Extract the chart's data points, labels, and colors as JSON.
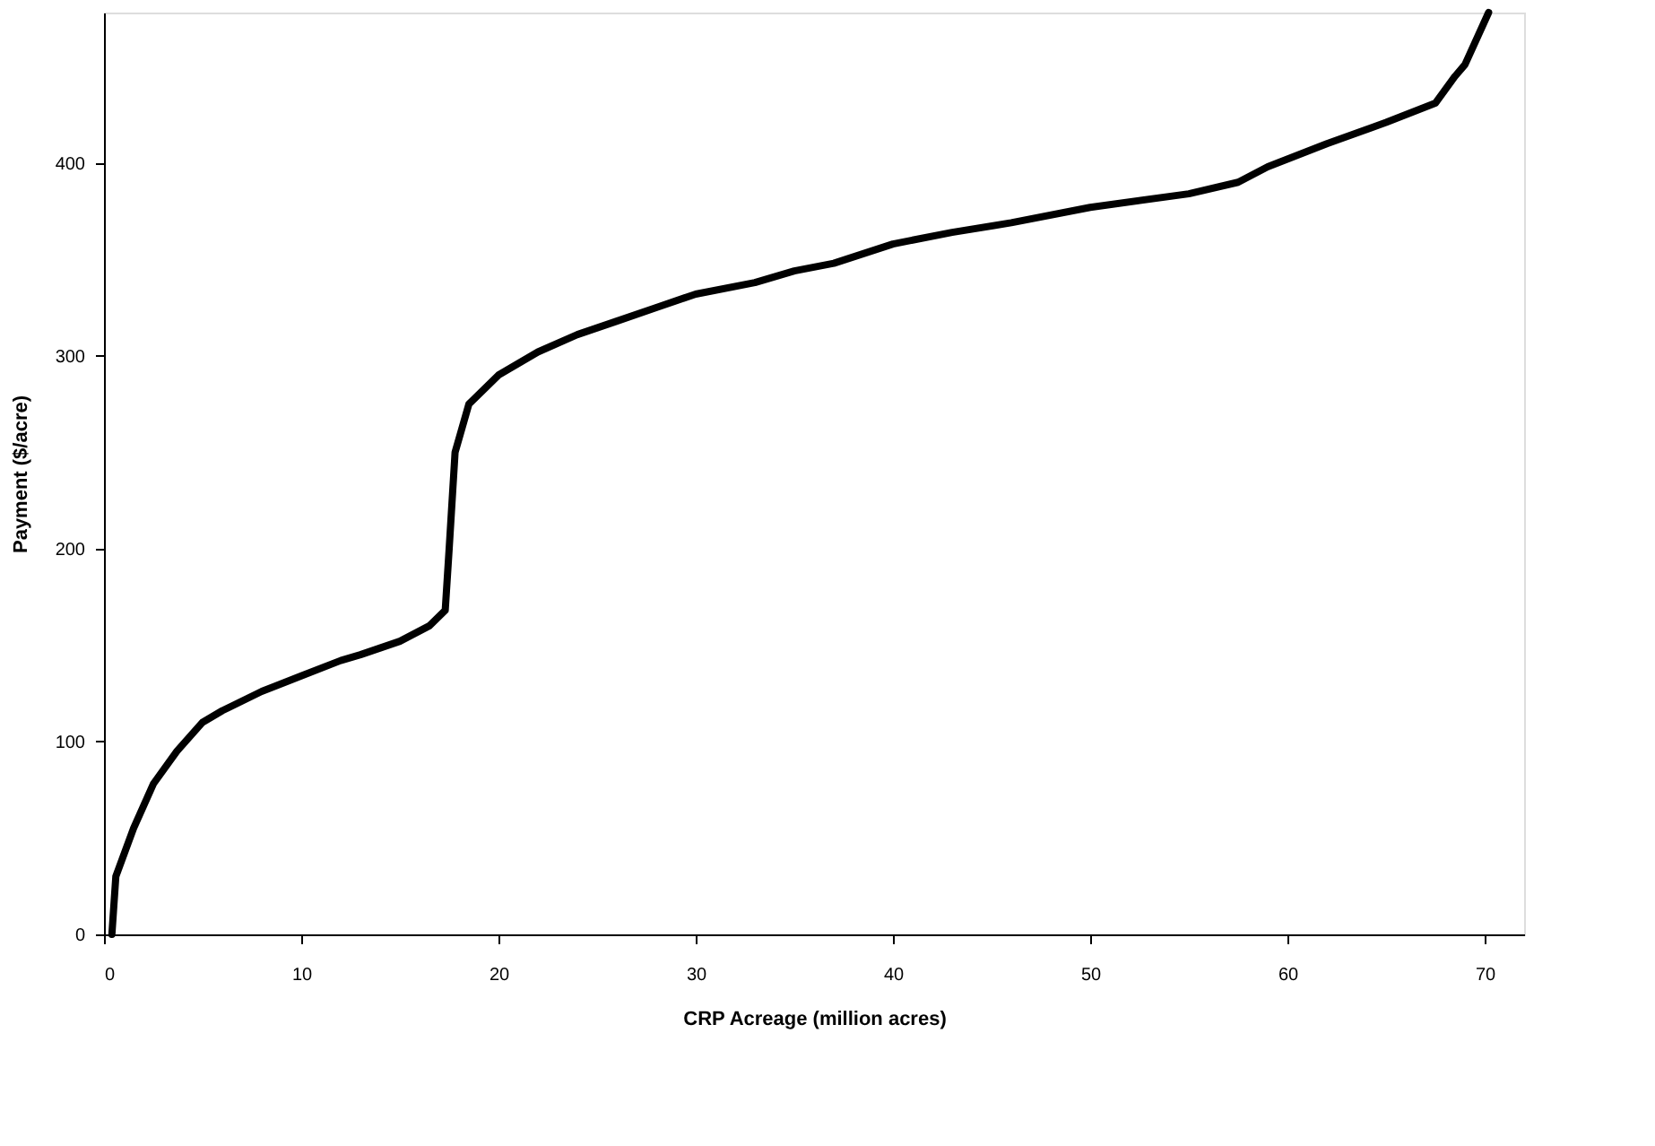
{
  "chart_data": {
    "type": "line",
    "xlabel": "CRP Acreage (million acres)",
    "ylabel": "Payment ($/acre)",
    "x": [
      0.4,
      0.6,
      1.5,
      2.5,
      3.7,
      5,
      6,
      8,
      10,
      12,
      13,
      15,
      16.5,
      17.3,
      17.5,
      17.8,
      18.5,
      20,
      22,
      24,
      26,
      28,
      30,
      33,
      35,
      37,
      40,
      43,
      46,
      50,
      55,
      57.5,
      59,
      62,
      65,
      67.5,
      68.5,
      69,
      70.2
    ],
    "series": [
      {
        "color": "#000000",
        "values": [
          0,
          30,
          55,
          78,
          95,
          110,
          116,
          126,
          134,
          142,
          145,
          152,
          160,
          168,
          200,
          250,
          275,
          290,
          302,
          311,
          318,
          325,
          332,
          338,
          344,
          348,
          358,
          364,
          369,
          377,
          384,
          390,
          398,
          410,
          421,
          431,
          445,
          451,
          478
        ]
      }
    ],
    "xlim": [
      0,
      72
    ],
    "ylim": [
      0,
      478
    ],
    "xticks": [
      0,
      10,
      20,
      30,
      40,
      50,
      60,
      70
    ],
    "yticks": [
      0,
      100,
      200,
      300,
      400
    ],
    "grid": false,
    "marker": "none",
    "line_style": "solid"
  }
}
